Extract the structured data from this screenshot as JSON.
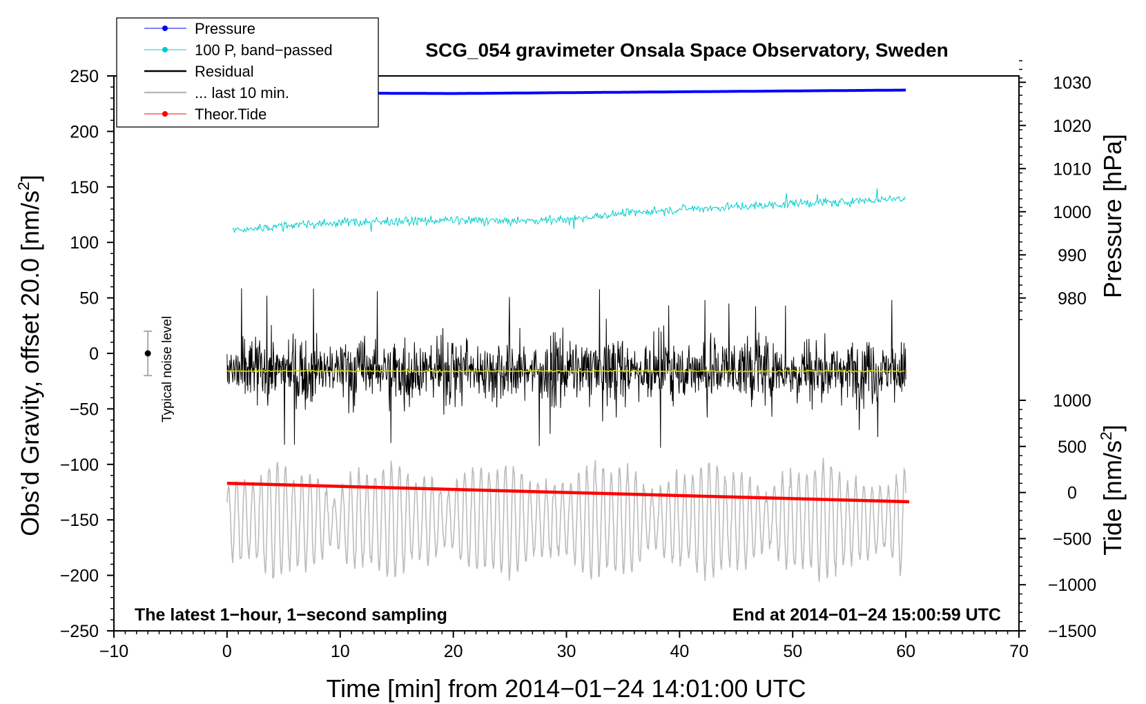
{
  "chart_data": {
    "type": "line",
    "title": "SCG_054 gravimeter Onsala Space Observatory, Sweden",
    "xlabel": "Time [min] from 2014−01−24 14:01:00 UTC",
    "ylabel_left": "Obs’d Gravity, offset 20.0 [nm/s",
    "ylabel_left_sup": "2",
    "ylabel_left_close": "]",
    "ylabel_right_pressure": "Pressure [hPa]",
    "ylabel_right_tide": "Tide [nm/s",
    "ylabel_right_tide_sup": "2",
    "ylabel_right_tide_close": "]",
    "xlim": [
      -10,
      70
    ],
    "ylim_left": [
      -250,
      250
    ],
    "pressure_axis_range": [
      975,
      1035
    ],
    "tide_axis_range": [
      -1500,
      1000
    ],
    "x_ticks": [
      "−10",
      "0",
      "10",
      "20",
      "30",
      "40",
      "50",
      "60",
      "70"
    ],
    "x_tick_values": [
      -10,
      0,
      10,
      20,
      30,
      40,
      50,
      60,
      70
    ],
    "y_left_ticks": [
      "250",
      "200",
      "150",
      "100",
      "50",
      "0",
      "−50",
      "−100",
      "−150",
      "−200",
      "−250"
    ],
    "y_left_tick_values": [
      250,
      200,
      150,
      100,
      50,
      0,
      -50,
      -100,
      -150,
      -200,
      -250
    ],
    "pressure_ticks": [
      "1030",
      "1020",
      "1010",
      "1000",
      "990",
      "980"
    ],
    "pressure_tick_values": [
      1030,
      1020,
      1010,
      1000,
      990,
      980
    ],
    "tide_ticks": [
      "1000",
      "500",
      "0",
      "−500",
      "−1000",
      "−1500"
    ],
    "tide_tick_values": [
      1000,
      500,
      0,
      -500,
      -1000,
      -1500
    ],
    "annotations": {
      "bottom_left": "The latest 1−hour, 1−second sampling",
      "bottom_right": "End at 2014−01−24 15:00:59 UTC",
      "noise_label": "Typical noise level"
    },
    "noise_bar": {
      "x": -7,
      "center": 0,
      "half_range": 20
    },
    "legend": [
      {
        "label": "Pressure",
        "color": "#0000ff",
        "marker": true
      },
      {
        "label": "100 P, band−passed",
        "color": "#00cccc",
        "marker": true
      },
      {
        "label": "Residual",
        "color": "#000000",
        "marker": false
      },
      {
        "label": "... last 10 min.",
        "color": "#bbbbbb",
        "marker": false
      },
      {
        "label": "Theor.Tide",
        "color": "#ff0000",
        "marker": true
      }
    ],
    "series": [
      {
        "name": "Pressure",
        "axis": "pressure",
        "color": "#0000ff",
        "x": [
          0,
          10,
          20,
          30,
          40,
          50,
          60
        ],
        "values": [
          1027.4,
          1027.5,
          1027.4,
          1027.6,
          1027.8,
          1028.0,
          1028.2
        ]
      },
      {
        "name": "100 P, band-passed",
        "axis": "left",
        "color": "#00cccc",
        "x": [
          0,
          5,
          10,
          15,
          20,
          25,
          30,
          35,
          40,
          45,
          50,
          55,
          60
        ],
        "values": [
          110,
          115,
          118,
          119,
          120,
          119,
          121,
          126,
          130,
          132,
          135,
          137,
          140
        ],
        "noise_amplitude": 5
      },
      {
        "name": "Residual",
        "axis": "left",
        "color": "#000000",
        "x": [
          0,
          60
        ],
        "values": [
          -15,
          -15
        ],
        "range": [
          -85,
          62
        ],
        "noise_amplitude": 35
      },
      {
        "name": "Residual smoothed",
        "axis": "left",
        "color": "#dddd00",
        "x": [
          0,
          60
        ],
        "values": [
          -16,
          -16
        ]
      },
      {
        "name": "... last 10 min.",
        "axis": "left",
        "color": "#bbbbbb",
        "x": [
          0,
          60
        ],
        "values": [
          -150,
          -150
        ],
        "range": [
          -225,
          -85
        ],
        "noise_amplitude": 40
      },
      {
        "name": "Theor.Tide",
        "axis": "tide",
        "color": "#ff0000",
        "x": [
          0,
          60.3
        ],
        "values": [
          100,
          -100
        ]
      }
    ],
    "legend_placement": "top-left"
  },
  "colors": {
    "pressure": "#0000ff",
    "bandpassed": "#00cccc",
    "residual": "#000000",
    "smoothed": "#dddd00",
    "last10": "#bbbbbb",
    "tide": "#ff0000"
  }
}
